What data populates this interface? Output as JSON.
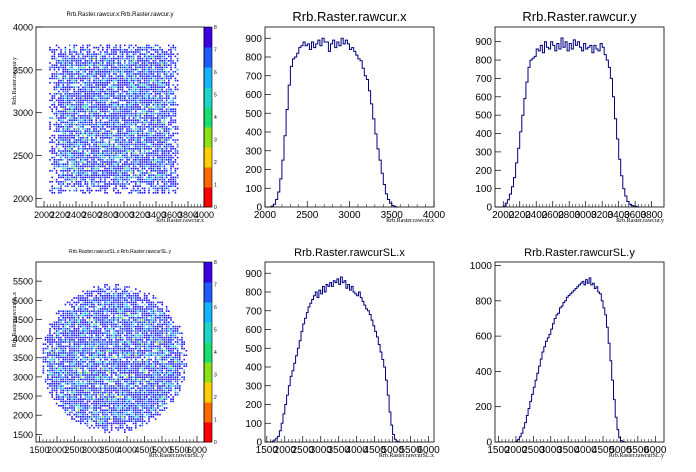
{
  "chart_data": [
    {
      "type": "heatmap",
      "title": "Rrb.Raster.rawcur.x:Rrb.Raster.rawcur.y",
      "xlabel": "Rrb.Raster.rawcur.x",
      "ylabel": "Rrb.Raster.rawcur.y",
      "xlim": [
        1900,
        4000
      ],
      "ylim": [
        1900,
        4000
      ],
      "xticks": [
        "2000",
        "2200",
        "2400",
        "2600",
        "2800",
        "3000",
        "3200",
        "3400",
        "3600",
        "3800",
        "4000"
      ],
      "yticks": [
        "2000",
        "2500",
        "3000",
        "3500",
        "4000"
      ],
      "region": {
        "shape": "rect",
        "x": [
          2060,
          3680
        ],
        "y": [
          2070,
          3820
        ]
      },
      "zlim": [
        0,
        8
      ],
      "zticks": [
        "0",
        "1",
        "2",
        "3",
        "4",
        "5",
        "6",
        "7",
        "8"
      ]
    },
    {
      "type": "bar",
      "title": "Rrb.Raster.rawcur.x",
      "xlabel": "Rrb.Raster.rawcur.x",
      "ylabel": "",
      "xlim": [
        2000,
        4000
      ],
      "ylim": [
        0,
        960
      ],
      "xticks": [
        "2000",
        "2500",
        "3000",
        "3500",
        "4000"
      ],
      "yticks": [
        "0",
        "100",
        "200",
        "300",
        "400",
        "500",
        "600",
        "700",
        "800",
        "900"
      ],
      "bin_start": 2050,
      "bin_width": 25,
      "values": [
        0,
        5,
        15,
        40,
        80,
        150,
        250,
        380,
        520,
        650,
        750,
        790,
        800,
        820,
        850,
        860,
        880,
        860,
        870,
        840,
        880,
        850,
        870,
        890,
        860,
        900,
        880,
        880,
        830,
        870,
        890,
        850,
        880,
        860,
        900,
        870,
        890,
        870,
        840,
        850,
        830,
        810,
        790,
        780,
        740,
        700,
        680,
        620,
        550,
        470,
        390,
        310,
        250,
        180,
        120,
        70,
        40,
        20,
        8,
        3,
        0
      ]
    },
    {
      "type": "bar",
      "title": "Rrb.Raster.rawcur.y",
      "xlabel": "Rrb.Raster.rawcur.y",
      "ylabel": "",
      "xlim": [
        1900,
        3950
      ],
      "ylim": [
        0,
        980
      ],
      "xticks": [
        "2000",
        "2200",
        "2400",
        "2600",
        "2800",
        "3000",
        "3200",
        "3400",
        "3600",
        "3800"
      ],
      "yticks": [
        "0",
        "100",
        "200",
        "300",
        "400",
        "500",
        "600",
        "700",
        "800",
        "900"
      ],
      "bin_start": 2000,
      "bin_width": 25,
      "values": [
        5,
        20,
        40,
        70,
        110,
        160,
        240,
        320,
        410,
        500,
        590,
        680,
        760,
        800,
        810,
        820,
        860,
        850,
        880,
        840,
        900,
        870,
        860,
        900,
        880,
        850,
        890,
        860,
        920,
        870,
        900,
        850,
        890,
        860,
        910,
        880,
        900,
        870,
        850,
        890,
        860,
        870,
        880,
        840,
        880,
        860,
        850,
        890,
        870,
        830,
        800,
        760,
        700,
        600,
        480,
        370,
        260,
        170,
        100,
        60,
        30,
        15,
        8,
        5,
        3,
        0
      ]
    },
    {
      "type": "heatmap",
      "title": "Rrb.Raster.rawcurSL.x:Rrb.Raster.rawcurSL.y",
      "xlabel": "Rrb.Raster.rawcurSL.y",
      "ylabel": "Rrb.Raster.rawcurSL.x",
      "xlim": [
        1400,
        6200
      ],
      "ylim": [
        1300,
        6000
      ],
      "xticks": [
        "1500",
        "2000",
        "2500",
        "3000",
        "3500",
        "4000",
        "4500",
        "5000",
        "5500",
        "6000"
      ],
      "yticks": [
        "1500",
        "2000",
        "2500",
        "3000",
        "3500",
        "4000",
        "4500",
        "5000",
        "5500"
      ],
      "region": {
        "shape": "ellipse",
        "cx": 3620,
        "cy": 3500,
        "rx": 2080,
        "ry": 1950
      },
      "zlim": [
        0,
        8
      ],
      "zticks": [
        "0",
        "1",
        "2",
        "3",
        "4",
        "5",
        "6",
        "7",
        "8"
      ]
    },
    {
      "type": "bar",
      "title": "Rrb.Raster.rawcurSL.x",
      "xlabel": "Rrb.Raster.rawcurSL.x",
      "ylabel": "",
      "xlim": [
        1450,
        6150
      ],
      "ylim": [
        0,
        960
      ],
      "xticks": [
        "1500",
        "2000",
        "2500",
        "3000",
        "3500",
        "4000",
        "4500",
        "5000",
        "5500",
        "6000"
      ],
      "yticks": [
        "0",
        "100",
        "200",
        "300",
        "400",
        "500",
        "600",
        "700",
        "800",
        "900"
      ],
      "bin_start": 1600,
      "bin_width": 50,
      "values": [
        0,
        5,
        10,
        20,
        30,
        60,
        100,
        150,
        200,
        250,
        300,
        350,
        380,
        420,
        460,
        500,
        540,
        590,
        630,
        660,
        690,
        720,
        740,
        760,
        780,
        800,
        770,
        810,
        790,
        830,
        800,
        840,
        830,
        850,
        830,
        860,
        850,
        870,
        840,
        880,
        850,
        860,
        820,
        840,
        810,
        830,
        800,
        790,
        780,
        800,
        770,
        750,
        730,
        710,
        700,
        680,
        650,
        620,
        590,
        560,
        520,
        480,
        440,
        400,
        330,
        250,
        160,
        90,
        40,
        15,
        5,
        0
      ]
    },
    {
      "type": "bar",
      "title": "Rrb.Raster.rawcurSL.y",
      "xlabel": "Rrb.Raster.rawcurSL.y",
      "ylabel": "",
      "xlim": [
        1400,
        6250
      ],
      "ylim": [
        0,
        1020
      ],
      "xticks": [
        "1500",
        "2000",
        "2500",
        "3000",
        "3500",
        "4000",
        "4500",
        "5000",
        "5500",
        "6000"
      ],
      "yticks": [
        "0",
        "200",
        "400",
        "600",
        "800",
        "1000"
      ],
      "bin_start": 2000,
      "bin_width": 50,
      "values": [
        5,
        15,
        30,
        50,
        80,
        110,
        150,
        190,
        230,
        270,
        310,
        350,
        390,
        430,
        470,
        510,
        540,
        570,
        590,
        610,
        640,
        670,
        700,
        720,
        730,
        760,
        770,
        790,
        800,
        820,
        830,
        840,
        850,
        860,
        870,
        880,
        890,
        900,
        910,
        890,
        920,
        900,
        930,
        890,
        900,
        870,
        880,
        850,
        840,
        800,
        760,
        720,
        650,
        560,
        460,
        350,
        240,
        140,
        70,
        25,
        8,
        2,
        0
      ]
    }
  ]
}
